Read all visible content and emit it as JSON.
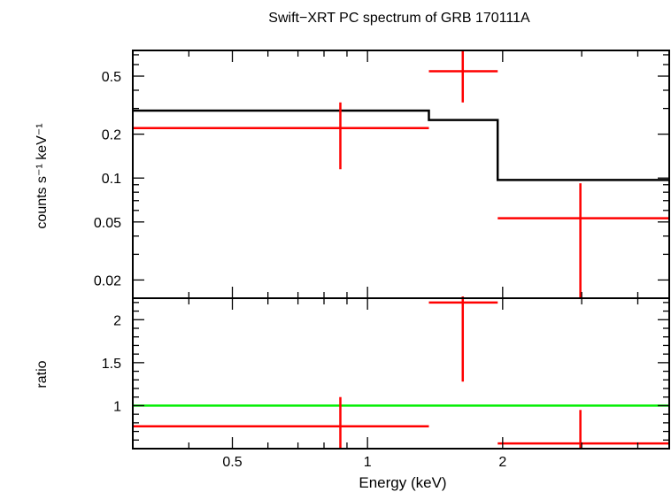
{
  "title": "Swift−XRT PC spectrum of GRB 170111A",
  "chart_data": [
    {
      "type": "scatter",
      "panel": "spectrum",
      "title": "Swift−XRT PC spectrum of GRB 170111A",
      "xlabel": "Energy (keV)",
      "ylabel": "counts s⁻¹ keV⁻¹",
      "x_scale": "log",
      "y_scale": "log",
      "xlim": [
        0.3,
        4.7
      ],
      "ylim": [
        0.015,
        0.75
      ],
      "yticks": [
        0.5,
        0.2,
        0.1,
        0.05,
        0.02
      ],
      "ytick_labels": [
        "0.5",
        "0.2",
        "0.1",
        "0.05",
        "0.02"
      ],
      "data_color": "#ff0000",
      "model_color": "#000000",
      "points": [
        {
          "x": 0.87,
          "xlo": 0.3,
          "xhi": 1.37,
          "y": 0.22,
          "ylo": 0.115,
          "yhi": 0.33
        },
        {
          "x": 1.63,
          "xlo": 1.37,
          "xhi": 1.95,
          "y": 0.54,
          "ylo": 0.33,
          "yhi": 0.75
        },
        {
          "x": 2.98,
          "xlo": 1.95,
          "xhi": 4.7,
          "y": 0.053,
          "ylo": 0.015,
          "yhi": 0.092
        }
      ],
      "model_steps": [
        {
          "xlo": 0.3,
          "xhi": 1.37,
          "y": 0.29
        },
        {
          "xlo": 1.37,
          "xhi": 1.95,
          "y": 0.25
        },
        {
          "xlo": 1.95,
          "xhi": 4.7,
          "y": 0.097
        }
      ]
    },
    {
      "type": "scatter",
      "panel": "ratio",
      "xlabel": "Energy (keV)",
      "ylabel": "ratio",
      "x_scale": "log",
      "y_scale": "linear",
      "xlim": [
        0.3,
        4.7
      ],
      "ylim": [
        0.5,
        2.25
      ],
      "yticks": [
        2,
        1.5,
        1
      ],
      "ytick_labels": [
        "2",
        "1.5",
        "1"
      ],
      "xticks": [
        0.5,
        1,
        2
      ],
      "xtick_labels": [
        "0.5",
        "1",
        "2"
      ],
      "data_color": "#ff0000",
      "reference_line": {
        "y": 1,
        "color": "#00ee00"
      },
      "points": [
        {
          "x": 0.87,
          "xlo": 0.3,
          "xhi": 1.37,
          "y": 0.76,
          "ylo": 0.5,
          "yhi": 1.1
        },
        {
          "x": 1.63,
          "xlo": 1.37,
          "xhi": 1.95,
          "y": 2.2,
          "ylo": 1.28,
          "yhi": 2.3
        },
        {
          "x": 2.98,
          "xlo": 1.95,
          "xhi": 4.7,
          "y": 0.56,
          "ylo": 0.5,
          "yhi": 0.95
        }
      ]
    }
  ]
}
